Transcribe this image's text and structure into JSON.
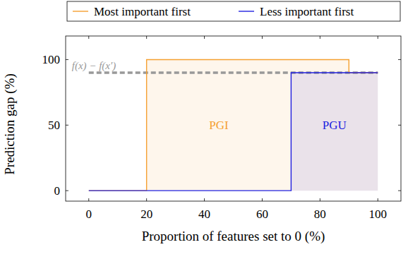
{
  "chart_data": {
    "type": "line",
    "x_label": "Proportion of features set to 0 (%)",
    "y_label": "Prediction gap (%)",
    "xlim": [
      -8,
      108
    ],
    "ylim": [
      -8,
      118
    ],
    "xticks": [
      0,
      20,
      40,
      60,
      80,
      100
    ],
    "yticks": [
      0,
      50,
      100
    ],
    "legend": "top",
    "series": [
      {
        "name": "Most important first",
        "color": "#f5a030",
        "x": [
          0,
          20,
          20,
          90,
          90,
          100
        ],
        "values": [
          0,
          0,
          100,
          100,
          90,
          90
        ]
      },
      {
        "name": "Less important first",
        "color": "#2020e0",
        "x": [
          0,
          70,
          70,
          100
        ],
        "values": [
          0,
          0,
          90,
          90
        ]
      }
    ],
    "reference_line": {
      "y": 90,
      "x": [
        0,
        100
      ],
      "label": "f(x) − f(x′)",
      "color": "#999999",
      "line_style": "dashed"
    },
    "annotations": [
      {
        "text": "PGI",
        "x": 45,
        "y": 50,
        "color": "#f5a030"
      },
      {
        "text": "PGU",
        "x": 85,
        "y": 50,
        "color": "#2020e0"
      }
    ]
  }
}
